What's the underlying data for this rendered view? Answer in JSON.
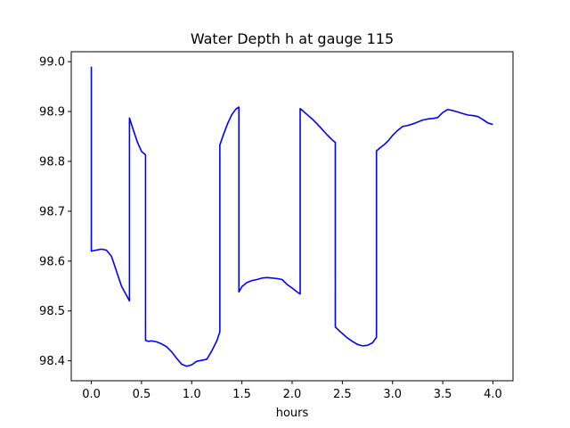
{
  "chart_data": {
    "type": "line",
    "title": "Water Depth h at gauge 115",
    "xlabel": "hours",
    "ylabel": "",
    "xlim": [
      -0.2,
      4.2
    ],
    "ylim": [
      98.36,
      99.02
    ],
    "x_ticks": [
      0.0,
      0.5,
      1.0,
      1.5,
      2.0,
      2.5,
      3.0,
      3.5,
      4.0
    ],
    "x_tick_labels": [
      "0.0",
      "0.5",
      "1.0",
      "1.5",
      "2.0",
      "2.5",
      "3.0",
      "3.5",
      "4.0"
    ],
    "y_ticks": [
      98.4,
      98.5,
      98.6,
      98.7,
      98.8,
      98.9,
      99.0
    ],
    "y_tick_labels": [
      "98.4",
      "98.5",
      "98.6",
      "98.7",
      "98.8",
      "98.9",
      "99.0"
    ],
    "grid": false,
    "legend": false,
    "series": [
      {
        "color": "#0000ff",
        "x": [
          0.0,
          0.0,
          0.05,
          0.1,
          0.15,
          0.2,
          0.25,
          0.3,
          0.38,
          0.38,
          0.42,
          0.46,
          0.5,
          0.54,
          0.54,
          0.57,
          0.6,
          0.65,
          0.7,
          0.75,
          0.8,
          0.85,
          0.9,
          0.95,
          1.0,
          1.05,
          1.1,
          1.15,
          1.2,
          1.25,
          1.28,
          1.28,
          1.32,
          1.36,
          1.4,
          1.44,
          1.47,
          1.47,
          1.5,
          1.55,
          1.6,
          1.65,
          1.7,
          1.75,
          1.8,
          1.85,
          1.9,
          1.95,
          2.0,
          2.05,
          2.08,
          2.08,
          2.12,
          2.16,
          2.2,
          2.25,
          2.3,
          2.35,
          2.4,
          2.43,
          2.43,
          2.47,
          2.51,
          2.55,
          2.6,
          2.65,
          2.7,
          2.75,
          2.8,
          2.84,
          2.84,
          2.88,
          2.92,
          2.96,
          3.0,
          3.05,
          3.1,
          3.15,
          3.2,
          3.25,
          3.3,
          3.35,
          3.4,
          3.45,
          3.5,
          3.55,
          3.6,
          3.65,
          3.7,
          3.75,
          3.8,
          3.85,
          3.9,
          3.95,
          4.0
        ],
        "y": [
          98.99,
          98.62,
          98.622,
          98.624,
          98.622,
          98.61,
          98.58,
          98.55,
          98.52,
          98.887,
          98.862,
          98.838,
          98.82,
          98.813,
          98.441,
          98.439,
          98.44,
          98.438,
          98.434,
          98.428,
          98.418,
          98.405,
          98.393,
          98.389,
          98.392,
          98.399,
          98.401,
          98.403,
          98.42,
          98.44,
          98.458,
          98.833,
          98.856,
          98.877,
          98.894,
          98.905,
          98.909,
          98.538,
          98.549,
          98.557,
          98.561,
          98.563,
          98.566,
          98.567,
          98.566,
          98.565,
          98.563,
          98.553,
          98.546,
          98.538,
          98.534,
          98.906,
          98.899,
          98.892,
          98.885,
          98.875,
          98.864,
          98.853,
          98.843,
          98.838,
          98.468,
          98.46,
          98.453,
          98.446,
          98.439,
          98.433,
          98.43,
          98.431,
          98.436,
          98.447,
          98.821,
          98.828,
          98.834,
          98.842,
          98.852,
          98.862,
          98.87,
          98.872,
          98.875,
          98.879,
          98.883,
          98.885,
          98.886,
          98.888,
          98.898,
          98.904,
          98.902,
          98.899,
          98.896,
          98.893,
          98.892,
          98.89,
          98.884,
          98.877,
          98.874
        ]
      }
    ]
  }
}
